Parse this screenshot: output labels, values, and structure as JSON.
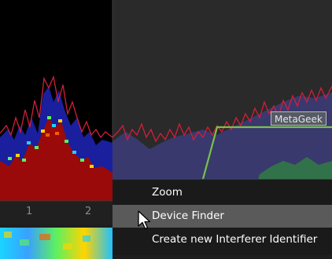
{
  "axis": {
    "ticks": [
      "1",
      "2"
    ]
  },
  "overlay": {
    "network_label": "MetaGeek"
  },
  "context_menu": {
    "items": [
      {
        "label": "Zoom"
      },
      {
        "label": "Device Finder",
        "highlighted": true
      },
      {
        "label": "Create new Interferer Identifier"
      }
    ]
  },
  "colors": {
    "background": "#1e1e1e",
    "left_pane": "#000000",
    "trace": "#d21e3c",
    "profile_outline": "#7ac24a",
    "density_base": "#9a0a0a",
    "density_mid": "#1a1f9e",
    "menu_bg": "#1a1a1a",
    "menu_hover": "#5a5a5a"
  },
  "icons": [
    "mouse-pointer-icon"
  ]
}
